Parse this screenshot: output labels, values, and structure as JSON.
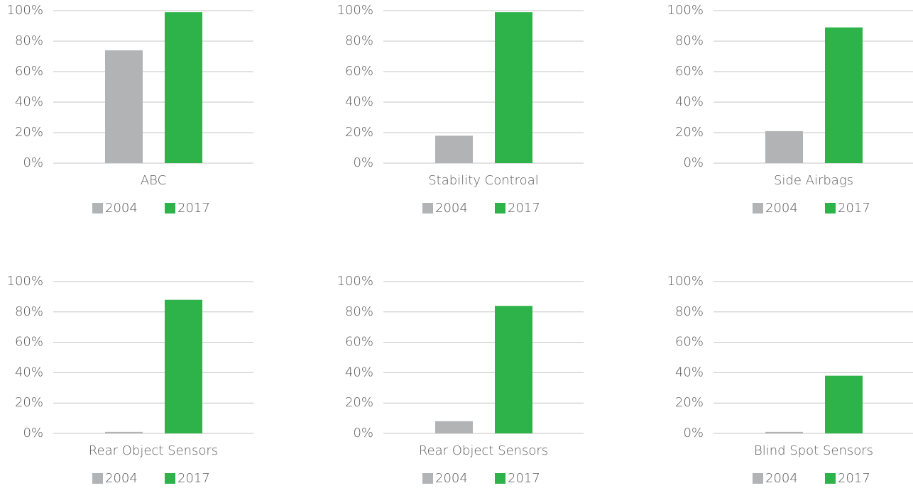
{
  "chart_data": [
    {
      "type": "bar",
      "categories": [
        "ABC"
      ],
      "series": [
        {
          "name": "2004",
          "color": "#b1b3b4",
          "values": [
            74
          ]
        },
        {
          "name": "2017",
          "color": "#2db34a",
          "values": [
            99
          ]
        }
      ],
      "ylim": [
        0,
        100
      ],
      "yticks": [
        {
          "value": 0,
          "label": "0%"
        },
        {
          "value": 20,
          "label": "20%"
        },
        {
          "value": 40,
          "label": "40%"
        },
        {
          "value": 60,
          "label": "60%"
        },
        {
          "value": 80,
          "label": "80%"
        },
        {
          "value": 100,
          "label": "100%"
        }
      ],
      "grid": true
    },
    {
      "type": "bar",
      "categories": [
        "Stability Controal"
      ],
      "series": [
        {
          "name": "2004",
          "color": "#b1b3b4",
          "values": [
            18
          ]
        },
        {
          "name": "2017",
          "color": "#2db34a",
          "values": [
            99
          ]
        }
      ],
      "ylim": [
        0,
        100
      ],
      "yticks": [
        {
          "value": 0,
          "label": "0%"
        },
        {
          "value": 20,
          "label": "20%"
        },
        {
          "value": 40,
          "label": "40%"
        },
        {
          "value": 60,
          "label": "60%"
        },
        {
          "value": 80,
          "label": "80%"
        },
        {
          "value": 100,
          "label": "100%"
        }
      ],
      "grid": true
    },
    {
      "type": "bar",
      "categories": [
        "Side Airbags"
      ],
      "series": [
        {
          "name": "2004",
          "color": "#b1b3b4",
          "values": [
            21
          ]
        },
        {
          "name": "2017",
          "color": "#2db34a",
          "values": [
            89
          ]
        }
      ],
      "ylim": [
        0,
        100
      ],
      "yticks": [
        {
          "value": 0,
          "label": "0%"
        },
        {
          "value": 20,
          "label": "20%"
        },
        {
          "value": 40,
          "label": "40%"
        },
        {
          "value": 60,
          "label": "60%"
        },
        {
          "value": 80,
          "label": "80%"
        },
        {
          "value": 100,
          "label": "100%"
        }
      ],
      "grid": true
    },
    {
      "type": "bar",
      "categories": [
        "Rear Object Sensors"
      ],
      "series": [
        {
          "name": "2004",
          "color": "#b1b3b4",
          "values": [
            1
          ]
        },
        {
          "name": "2017",
          "color": "#2db34a",
          "values": [
            88
          ]
        }
      ],
      "ylim": [
        0,
        100
      ],
      "yticks": [
        {
          "value": 0,
          "label": "0%"
        },
        {
          "value": 20,
          "label": "20%"
        },
        {
          "value": 40,
          "label": "40%"
        },
        {
          "value": 60,
          "label": "60%"
        },
        {
          "value": 80,
          "label": "80%"
        },
        {
          "value": 100,
          "label": "100%"
        }
      ],
      "grid": true
    },
    {
      "type": "bar",
      "categories": [
        "Rear Object Sensors"
      ],
      "series": [
        {
          "name": "2004",
          "color": "#b1b3b4",
          "values": [
            8
          ]
        },
        {
          "name": "2017",
          "color": "#2db34a",
          "values": [
            84
          ]
        }
      ],
      "ylim": [
        0,
        100
      ],
      "yticks": [
        {
          "value": 0,
          "label": "0%"
        },
        {
          "value": 20,
          "label": "20%"
        },
        {
          "value": 40,
          "label": "40%"
        },
        {
          "value": 60,
          "label": "60%"
        },
        {
          "value": 80,
          "label": "80%"
        },
        {
          "value": 100,
          "label": "100%"
        }
      ],
      "grid": true
    },
    {
      "type": "bar",
      "categories": [
        "Blind Spot Sensors"
      ],
      "series": [
        {
          "name": "2004",
          "color": "#b1b3b4",
          "values": [
            1
          ]
        },
        {
          "name": "2017",
          "color": "#2db34a",
          "values": [
            38
          ]
        }
      ],
      "ylim": [
        0,
        100
      ],
      "yticks": [
        {
          "value": 0,
          "label": "0%"
        },
        {
          "value": 20,
          "label": "20%"
        },
        {
          "value": 40,
          "label": "40%"
        },
        {
          "value": 60,
          "label": "60%"
        },
        {
          "value": 80,
          "label": "80%"
        },
        {
          "value": 100,
          "label": "100%"
        }
      ],
      "grid": true
    }
  ]
}
